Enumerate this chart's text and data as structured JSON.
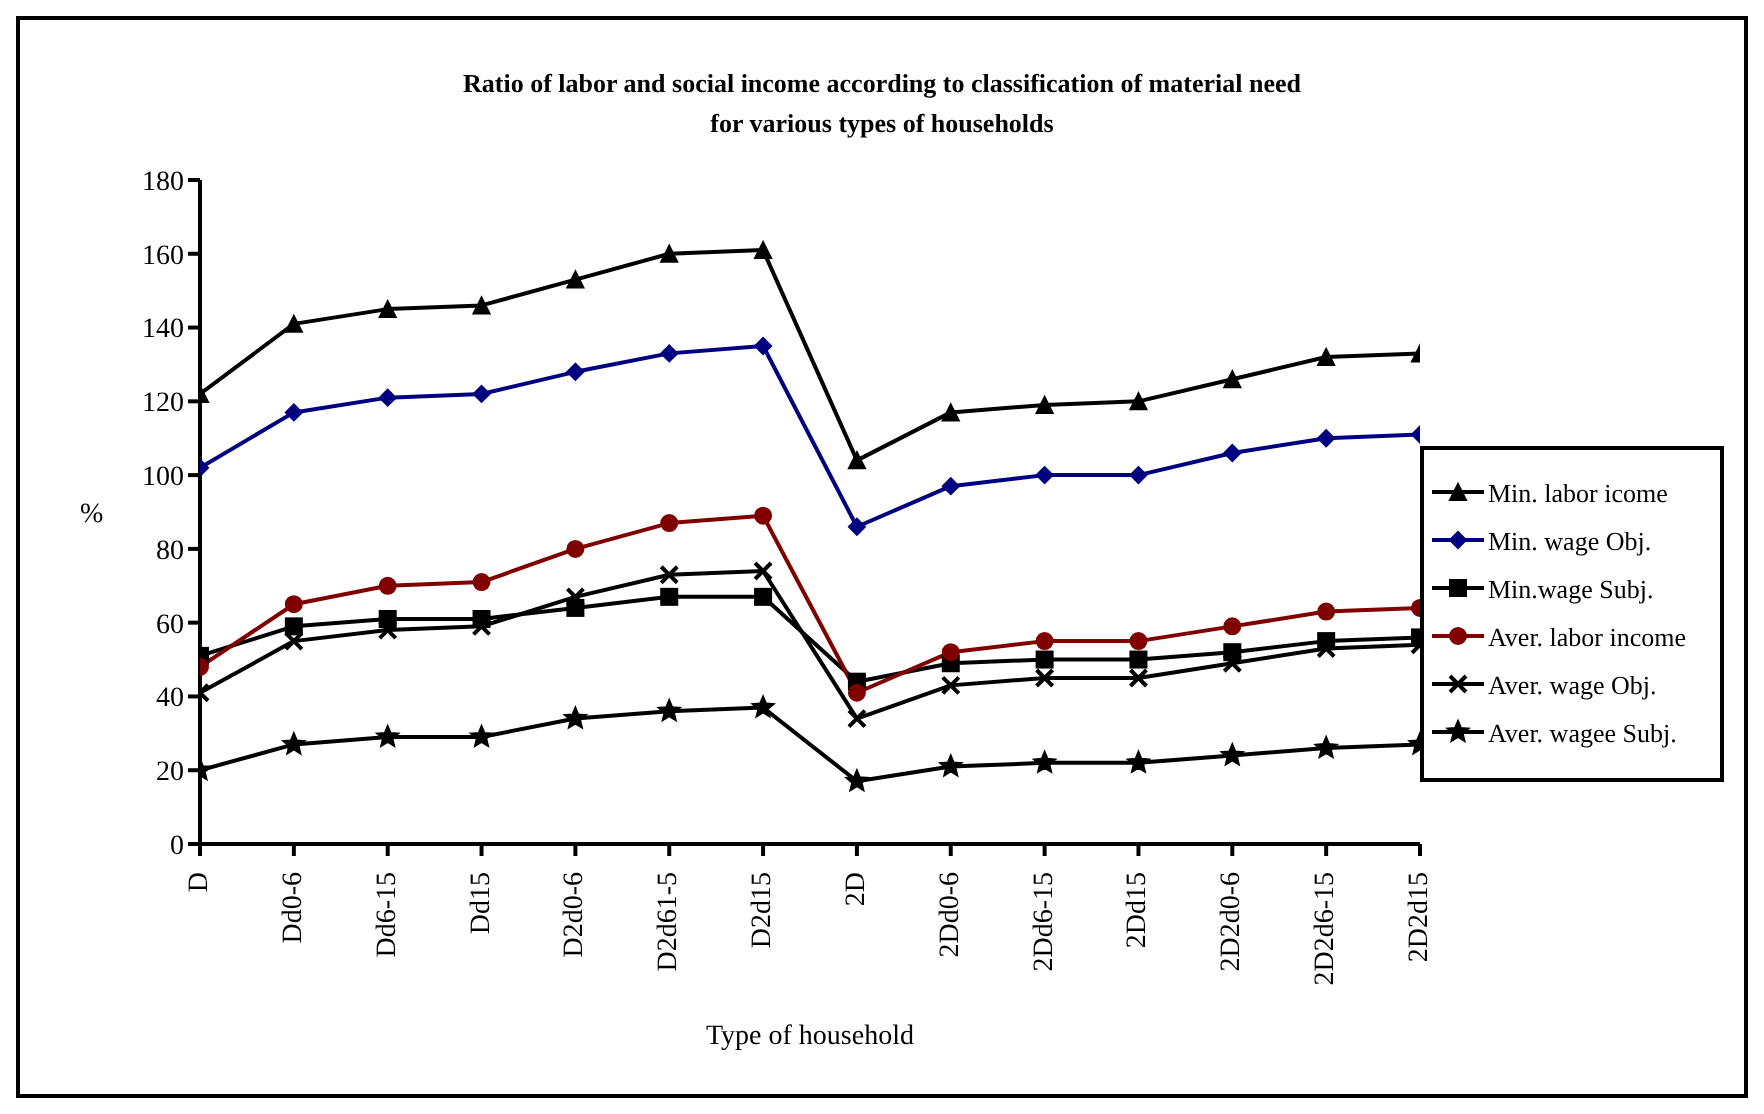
{
  "chart_data": {
    "type": "line",
    "title": "Ratio of labor and social income according to classification of material need for various types of households",
    "xlabel": "Type of household",
    "ylabel": "%",
    "categories": [
      "D",
      "Dd0-6",
      "Dd6-15",
      "Dd15",
      "D2d0-6",
      "D2d61-5",
      "D2d15",
      "2D",
      "2Dd0-6",
      "2Dd6-15",
      "2Dd15",
      "2D2d0-6",
      "2D2d6-15",
      "2D2d15"
    ],
    "ylim": [
      0,
      180
    ],
    "yticks": [
      0,
      20,
      40,
      60,
      80,
      100,
      120,
      140,
      160,
      180
    ],
    "grid": false,
    "legend": "right",
    "series": [
      {
        "name": "Min. labor icome",
        "color": "#000000",
        "marker": "triangle",
        "values": [
          122,
          141,
          145,
          146,
          153,
          160,
          161,
          104,
          117,
          119,
          120,
          126,
          132,
          133
        ]
      },
      {
        "name": "Min. wage Obj.",
        "color": "#000080",
        "marker": "diamond",
        "values": [
          102,
          117,
          121,
          122,
          128,
          133,
          135,
          86,
          97,
          100,
          100,
          106,
          110,
          111
        ]
      },
      {
        "name": "Min.wage Subj.",
        "color": "#000000",
        "marker": "square",
        "values": [
          51,
          59,
          61,
          61,
          64,
          67,
          67,
          44,
          49,
          50,
          50,
          52,
          55,
          56
        ]
      },
      {
        "name": "Aver. labor income",
        "color": "#800000",
        "marker": "circle",
        "values": [
          48,
          65,
          70,
          71,
          80,
          87,
          89,
          41,
          52,
          55,
          55,
          59,
          63,
          64
        ]
      },
      {
        "name": "Aver. wage Obj.",
        "color": "#000000",
        "marker": "cross",
        "values": [
          41,
          55,
          58,
          59,
          67,
          73,
          74,
          34,
          43,
          45,
          45,
          49,
          53,
          54
        ]
      },
      {
        "name": "Aver. wagee Subj.",
        "color": "#000000",
        "marker": "star",
        "values": [
          20,
          27,
          29,
          29,
          34,
          36,
          37,
          17,
          21,
          22,
          22,
          24,
          26,
          27
        ]
      }
    ]
  }
}
